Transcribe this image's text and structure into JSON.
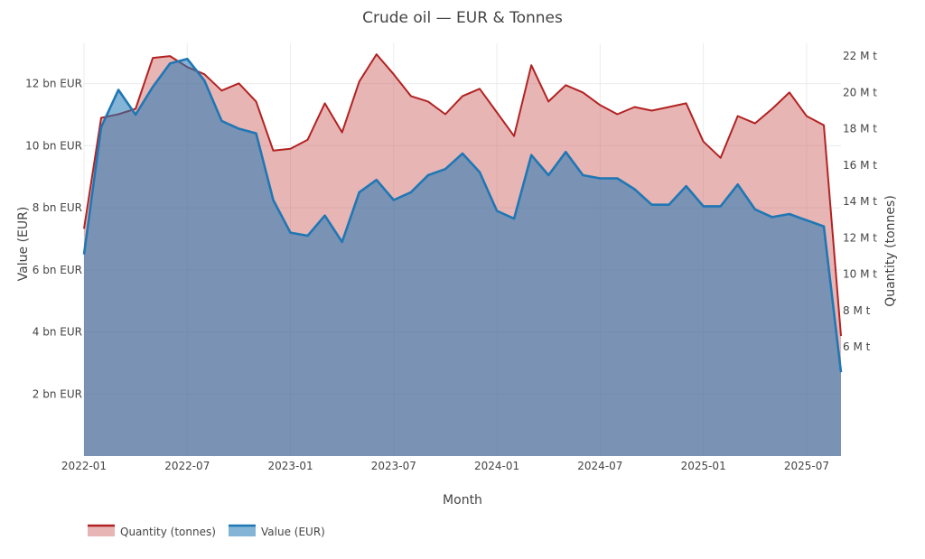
{
  "chart_data": {
    "type": "area",
    "title": "Crude oil — EUR & Tonnes",
    "xlabel": "Month",
    "ylabel_left": "Value (EUR)",
    "ylabel_right": "Quantity (tonnes)",
    "x": [
      "2022-01",
      "2022-02",
      "2022-03",
      "2022-04",
      "2022-05",
      "2022-06",
      "2022-07",
      "2022-08",
      "2022-09",
      "2022-10",
      "2022-11",
      "2022-12",
      "2023-01",
      "2023-02",
      "2023-03",
      "2023-04",
      "2023-05",
      "2023-06",
      "2023-07",
      "2023-08",
      "2023-09",
      "2023-10",
      "2023-11",
      "2023-12",
      "2024-01",
      "2024-02",
      "2024-03",
      "2024-04",
      "2024-05",
      "2024-06",
      "2024-07",
      "2024-08",
      "2024-09",
      "2024-10",
      "2024-11",
      "2024-12",
      "2025-01",
      "2025-02",
      "2025-03",
      "2025-04",
      "2025-05",
      "2025-06",
      "2025-07",
      "2025-08",
      "2025-09"
    ],
    "x_ticks": [
      "2022-01",
      "2022-07",
      "2023-01",
      "2023-07",
      "2024-01",
      "2024-07",
      "2025-01",
      "2025-07"
    ],
    "ylim_left": [
      0,
      13.3
    ],
    "ylim_right": [
      0,
      22.7
    ],
    "left_ticks": [
      {
        "v": 2,
        "label": "2 bn EUR"
      },
      {
        "v": 4,
        "label": "4 bn EUR"
      },
      {
        "v": 6,
        "label": "6 bn EUR"
      },
      {
        "v": 8,
        "label": "8 bn EUR"
      },
      {
        "v": 10,
        "label": "10 bn EUR"
      },
      {
        "v": 12,
        "label": "12 bn EUR"
      }
    ],
    "right_ticks": [
      {
        "v": 6,
        "label": "6 M t"
      },
      {
        "v": 8,
        "label": "8 M t"
      },
      {
        "v": 10,
        "label": "10 M t"
      },
      {
        "v": 12,
        "label": "12 M t"
      },
      {
        "v": 14,
        "label": "14 M t"
      },
      {
        "v": 16,
        "label": "16 M t"
      },
      {
        "v": 18,
        "label": "18 M t"
      },
      {
        "v": 20,
        "label": "20 M t"
      },
      {
        "v": 22,
        "label": "22 M t"
      }
    ],
    "grid": true,
    "legend_position": "bottom-left",
    "series": [
      {
        "name": "Quantity (tonnes)",
        "axis": "right",
        "color": "#b22222",
        "fill": "rgba(205,92,92,0.45)",
        "values": [
          12.5,
          18.6,
          18.8,
          19.1,
          21.9,
          22.0,
          21.4,
          21.0,
          20.1,
          20.5,
          19.5,
          16.8,
          16.9,
          17.4,
          19.4,
          17.8,
          20.6,
          22.1,
          21.0,
          19.8,
          19.5,
          18.8,
          19.8,
          20.2,
          18.9,
          17.6,
          21.5,
          19.5,
          20.4,
          20.0,
          19.3,
          18.8,
          19.2,
          19.0,
          19.2,
          19.4,
          17.3,
          16.4,
          18.7,
          18.3,
          19.1,
          20.0,
          18.7,
          18.2,
          6.6
        ]
      },
      {
        "name": "Value (EUR)",
        "axis": "left",
        "color": "#1f77b4",
        "fill": "rgba(31,119,180,0.55)",
        "values": [
          6.5,
          10.6,
          11.8,
          11.0,
          11.9,
          12.65,
          12.8,
          12.1,
          10.8,
          10.55,
          10.4,
          8.25,
          7.2,
          7.1,
          7.75,
          6.9,
          8.5,
          8.9,
          8.25,
          8.5,
          9.05,
          9.25,
          9.75,
          9.15,
          7.9,
          7.65,
          9.7,
          9.05,
          9.8,
          9.05,
          8.95,
          8.95,
          8.6,
          8.1,
          8.1,
          8.7,
          8.05,
          8.05,
          8.75,
          7.95,
          7.7,
          7.8,
          7.6,
          7.4,
          2.7
        ]
      }
    ]
  }
}
